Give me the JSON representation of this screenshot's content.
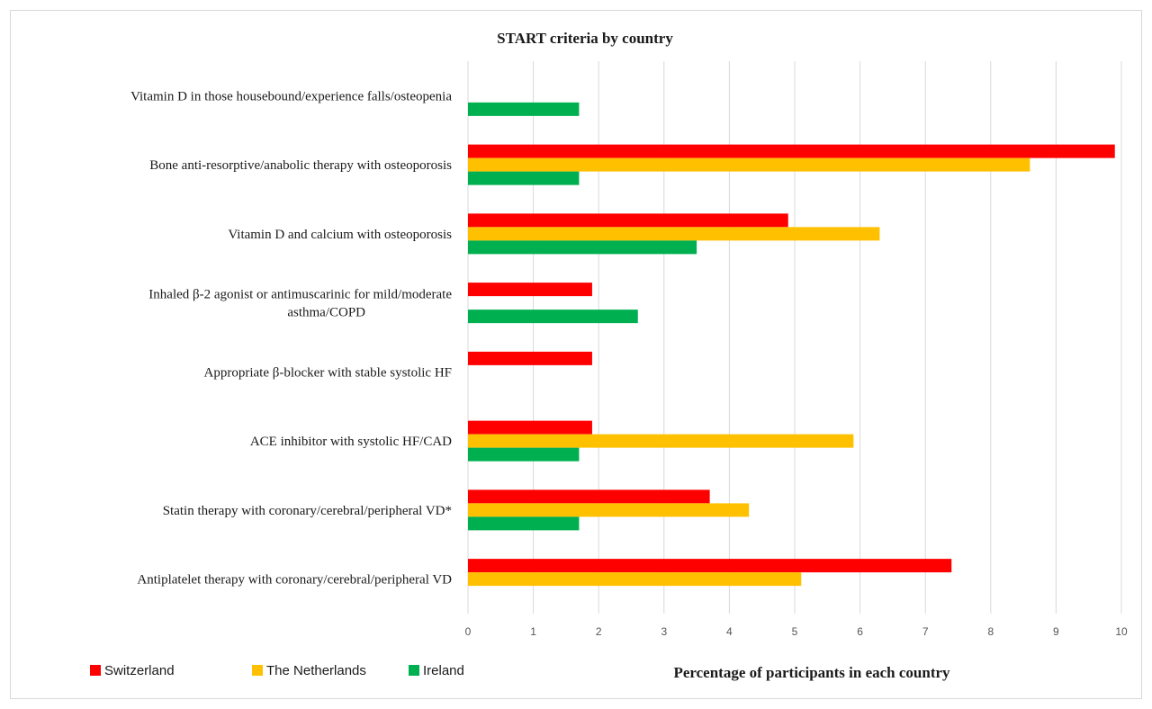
{
  "chart_data": {
    "type": "bar",
    "orientation": "horizontal",
    "title": "START criteria by country",
    "xlabel": "Percentage of participants  in each country",
    "ylabel": "",
    "xlim": [
      0,
      10
    ],
    "xticks": [
      "0",
      "1",
      "2",
      "3",
      "4",
      "5",
      "6",
      "7",
      "8",
      "9",
      "10"
    ],
    "grid": "vertical",
    "legend_position": "bottom-left",
    "categories": [
      {
        "lines": [
          "Vitamin D in those housebound/experience falls/osteopenia"
        ]
      },
      {
        "lines": [
          "Bone anti-resorptive/anabolic therapy with osteoporosis"
        ]
      },
      {
        "lines": [
          "Vitamin D and calcium with osteoporosis"
        ]
      },
      {
        "lines": [
          "Inhaled β-2  agonist or antimuscarinic for mild/moderate",
          "asthma/COPD"
        ]
      },
      {
        "lines": [
          "Appropriate β-blocker with stable systolic HF"
        ]
      },
      {
        "lines": [
          "ACE inhibitor with systolic HF/CAD"
        ]
      },
      {
        "lines": [
          "Statin therapy with coronary/cerebral/peripheral VD*"
        ]
      },
      {
        "lines": [
          "Antiplatelet therapy with coronary/cerebral/peripheral VD"
        ]
      }
    ],
    "series": [
      {
        "name": "Switzerland",
        "color": "#ff0000",
        "values": [
          0,
          9.9,
          4.9,
          1.9,
          1.9,
          1.9,
          3.7,
          7.4
        ]
      },
      {
        "name": "The Netherlands",
        "color": "#ffc000",
        "values": [
          0,
          8.6,
          6.3,
          0,
          0,
          5.9,
          4.3,
          5.1
        ]
      },
      {
        "name": "Ireland",
        "color": "#00b050",
        "values": [
          1.7,
          1.7,
          3.5,
          2.6,
          0,
          1.7,
          1.7,
          0
        ]
      }
    ]
  }
}
